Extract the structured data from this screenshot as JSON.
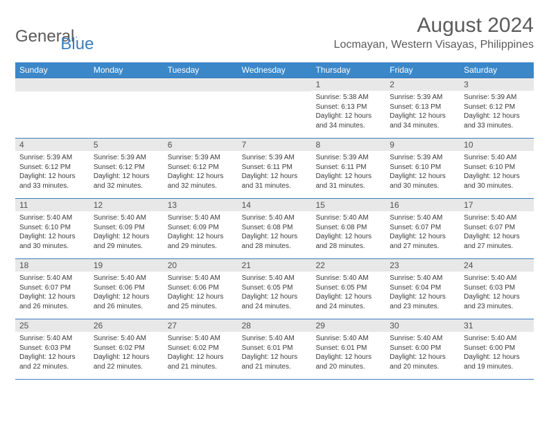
{
  "logo": {
    "general": "General",
    "blue": "Blue"
  },
  "header": {
    "title": "August 2024",
    "location": "Locmayan, Western Visayas, Philippines"
  },
  "colors": {
    "header_bg": "#3b87c8",
    "header_text": "#ffffff",
    "daynum_bg": "#e8e8e8",
    "border": "#3b7dbf",
    "body_text": "#3a3a3a",
    "title_text": "#5a5a5a",
    "logo_blue": "#3b7dbf"
  },
  "daysOfWeek": [
    "Sunday",
    "Monday",
    "Tuesday",
    "Wednesday",
    "Thursday",
    "Friday",
    "Saturday"
  ],
  "weeks": [
    [
      null,
      null,
      null,
      null,
      {
        "n": "1",
        "sr": "5:38 AM",
        "ss": "6:13 PM",
        "dl": "12 hours and 34 minutes."
      },
      {
        "n": "2",
        "sr": "5:39 AM",
        "ss": "6:13 PM",
        "dl": "12 hours and 34 minutes."
      },
      {
        "n": "3",
        "sr": "5:39 AM",
        "ss": "6:12 PM",
        "dl": "12 hours and 33 minutes."
      }
    ],
    [
      {
        "n": "4",
        "sr": "5:39 AM",
        "ss": "6:12 PM",
        "dl": "12 hours and 33 minutes."
      },
      {
        "n": "5",
        "sr": "5:39 AM",
        "ss": "6:12 PM",
        "dl": "12 hours and 32 minutes."
      },
      {
        "n": "6",
        "sr": "5:39 AM",
        "ss": "6:12 PM",
        "dl": "12 hours and 32 minutes."
      },
      {
        "n": "7",
        "sr": "5:39 AM",
        "ss": "6:11 PM",
        "dl": "12 hours and 31 minutes."
      },
      {
        "n": "8",
        "sr": "5:39 AM",
        "ss": "6:11 PM",
        "dl": "12 hours and 31 minutes."
      },
      {
        "n": "9",
        "sr": "5:39 AM",
        "ss": "6:10 PM",
        "dl": "12 hours and 30 minutes."
      },
      {
        "n": "10",
        "sr": "5:40 AM",
        "ss": "6:10 PM",
        "dl": "12 hours and 30 minutes."
      }
    ],
    [
      {
        "n": "11",
        "sr": "5:40 AM",
        "ss": "6:10 PM",
        "dl": "12 hours and 30 minutes."
      },
      {
        "n": "12",
        "sr": "5:40 AM",
        "ss": "6:09 PM",
        "dl": "12 hours and 29 minutes."
      },
      {
        "n": "13",
        "sr": "5:40 AM",
        "ss": "6:09 PM",
        "dl": "12 hours and 29 minutes."
      },
      {
        "n": "14",
        "sr": "5:40 AM",
        "ss": "6:08 PM",
        "dl": "12 hours and 28 minutes."
      },
      {
        "n": "15",
        "sr": "5:40 AM",
        "ss": "6:08 PM",
        "dl": "12 hours and 28 minutes."
      },
      {
        "n": "16",
        "sr": "5:40 AM",
        "ss": "6:07 PM",
        "dl": "12 hours and 27 minutes."
      },
      {
        "n": "17",
        "sr": "5:40 AM",
        "ss": "6:07 PM",
        "dl": "12 hours and 27 minutes."
      }
    ],
    [
      {
        "n": "18",
        "sr": "5:40 AM",
        "ss": "6:07 PM",
        "dl": "12 hours and 26 minutes."
      },
      {
        "n": "19",
        "sr": "5:40 AM",
        "ss": "6:06 PM",
        "dl": "12 hours and 26 minutes."
      },
      {
        "n": "20",
        "sr": "5:40 AM",
        "ss": "6:06 PM",
        "dl": "12 hours and 25 minutes."
      },
      {
        "n": "21",
        "sr": "5:40 AM",
        "ss": "6:05 PM",
        "dl": "12 hours and 24 minutes."
      },
      {
        "n": "22",
        "sr": "5:40 AM",
        "ss": "6:05 PM",
        "dl": "12 hours and 24 minutes."
      },
      {
        "n": "23",
        "sr": "5:40 AM",
        "ss": "6:04 PM",
        "dl": "12 hours and 23 minutes."
      },
      {
        "n": "24",
        "sr": "5:40 AM",
        "ss": "6:03 PM",
        "dl": "12 hours and 23 minutes."
      }
    ],
    [
      {
        "n": "25",
        "sr": "5:40 AM",
        "ss": "6:03 PM",
        "dl": "12 hours and 22 minutes."
      },
      {
        "n": "26",
        "sr": "5:40 AM",
        "ss": "6:02 PM",
        "dl": "12 hours and 22 minutes."
      },
      {
        "n": "27",
        "sr": "5:40 AM",
        "ss": "6:02 PM",
        "dl": "12 hours and 21 minutes."
      },
      {
        "n": "28",
        "sr": "5:40 AM",
        "ss": "6:01 PM",
        "dl": "12 hours and 21 minutes."
      },
      {
        "n": "29",
        "sr": "5:40 AM",
        "ss": "6:01 PM",
        "dl": "12 hours and 20 minutes."
      },
      {
        "n": "30",
        "sr": "5:40 AM",
        "ss": "6:00 PM",
        "dl": "12 hours and 20 minutes."
      },
      {
        "n": "31",
        "sr": "5:40 AM",
        "ss": "6:00 PM",
        "dl": "12 hours and 19 minutes."
      }
    ]
  ],
  "labels": {
    "sunrise": "Sunrise: ",
    "sunset": "Sunset: ",
    "daylight": "Daylight: "
  }
}
